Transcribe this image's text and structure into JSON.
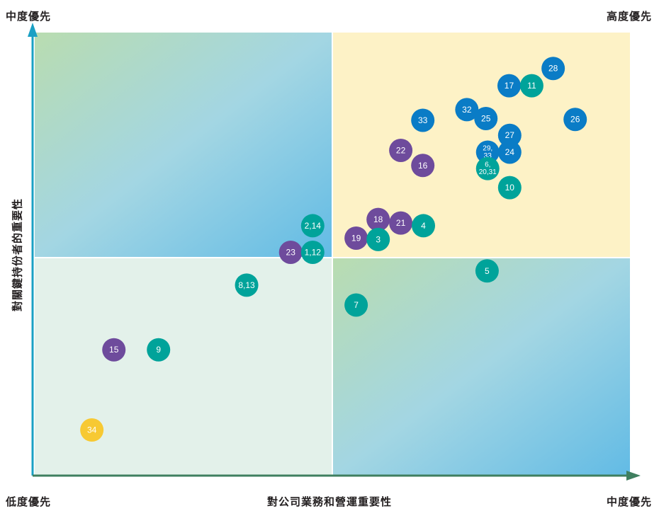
{
  "corner_labels": {
    "top_left": "中度優先",
    "top_right": "高度優先",
    "bottom_left": "低度優先",
    "bottom_right": "中度優先"
  },
  "colors": {
    "blue": "#0a7cc6",
    "teal": "#00a39a",
    "purple": "#6e4b9c",
    "yellow": "#f7c933",
    "axis_x": "#3f7f5f",
    "axis_y": "#1aa0c4",
    "quad_top_right": "#fdf2c6",
    "quad_bottom_left": "#e3f1ea"
  },
  "chart_data": {
    "type": "scatter",
    "title": "",
    "xlabel": "對公司業務和營運重要性",
    "ylabel": "對關鍵持份者的重要性",
    "xlim": [
      0,
      100
    ],
    "ylim": [
      0,
      100
    ],
    "grid": false,
    "legend": "none",
    "points": [
      {
        "label": "28",
        "x": 87.1,
        "y": 91.9,
        "color": "blue"
      },
      {
        "label": "17",
        "x": 79.7,
        "y": 88.0,
        "color": "blue"
      },
      {
        "label": "11",
        "x": 83.5,
        "y": 88.0,
        "color": "teal"
      },
      {
        "label": "32",
        "x": 72.6,
        "y": 82.6,
        "color": "blue"
      },
      {
        "label": "25",
        "x": 75.8,
        "y": 80.6,
        "color": "blue"
      },
      {
        "label": "26",
        "x": 90.8,
        "y": 80.4,
        "color": "blue"
      },
      {
        "label": "33",
        "x": 65.2,
        "y": 80.2,
        "color": "blue"
      },
      {
        "label": "27",
        "x": 79.8,
        "y": 76.8,
        "color": "blue"
      },
      {
        "label": "29,\n33",
        "x": 76.1,
        "y": 73.0,
        "color": "blue"
      },
      {
        "label": "24",
        "x": 79.8,
        "y": 73.0,
        "color": "blue"
      },
      {
        "label": "22",
        "x": 61.5,
        "y": 73.4,
        "color": "purple"
      },
      {
        "label": "16",
        "x": 65.2,
        "y": 70.0,
        "color": "purple"
      },
      {
        "label": "6,\n20,31",
        "x": 76.1,
        "y": 69.3,
        "color": "teal"
      },
      {
        "label": "10",
        "x": 79.8,
        "y": 65.0,
        "color": "teal"
      },
      {
        "label": "18",
        "x": 57.7,
        "y": 57.8,
        "color": "purple"
      },
      {
        "label": "21",
        "x": 61.5,
        "y": 57.0,
        "color": "purple"
      },
      {
        "label": "4",
        "x": 65.3,
        "y": 56.4,
        "color": "teal"
      },
      {
        "label": "2,14",
        "x": 46.7,
        "y": 56.4,
        "color": "teal"
      },
      {
        "label": "19",
        "x": 54.0,
        "y": 53.6,
        "color": "purple"
      },
      {
        "label": "3",
        "x": 57.7,
        "y": 53.3,
        "color": "teal"
      },
      {
        "label": "23",
        "x": 43.0,
        "y": 50.4,
        "color": "purple"
      },
      {
        "label": "1,12",
        "x": 46.7,
        "y": 50.4,
        "color": "teal"
      },
      {
        "label": "5",
        "x": 76.0,
        "y": 46.2,
        "color": "teal"
      },
      {
        "label": "8,13",
        "x": 35.6,
        "y": 43.0,
        "color": "teal"
      },
      {
        "label": "7",
        "x": 54.0,
        "y": 38.5,
        "color": "teal"
      },
      {
        "label": "15",
        "x": 13.3,
        "y": 28.4,
        "color": "purple"
      },
      {
        "label": "9",
        "x": 20.8,
        "y": 28.4,
        "color": "teal"
      },
      {
        "label": "34",
        "x": 9.6,
        "y": 10.3,
        "color": "yellow"
      }
    ]
  }
}
